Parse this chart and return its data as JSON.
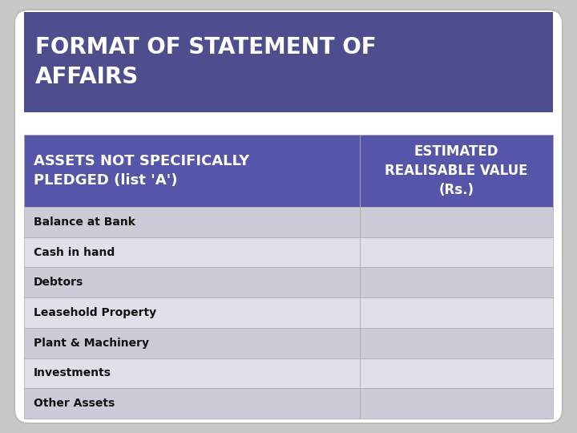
{
  "title": "FORMAT OF STATEMENT OF\nAFFAIRS",
  "title_bg": "#4e4e8f",
  "title_text_color": "#ffffff",
  "header_col1": "ASSETS NOT SPECIFICALLY\nPLEDGED (list 'A')",
  "header_col2": "ESTIMATED\nREALISABLE VALUE\n(Rs.)",
  "header_bg": "#5555aa",
  "header_text_color": "#ffffff",
  "rows": [
    "Balance at Bank",
    "Cash in hand",
    "Debtors",
    "Leasehold Property",
    "Plant & Machinery",
    "Investments",
    "Other Assets"
  ],
  "row_bg_even": "#ccccd8",
  "row_bg_odd": "#e0e0ea",
  "row_text_color": "#111111",
  "outer_bg": "#f0f0f0",
  "page_bg": "#ffffff",
  "border_color": "#aaaaaa",
  "col_split": 0.635,
  "fig_bg": "#c8c8c8"
}
